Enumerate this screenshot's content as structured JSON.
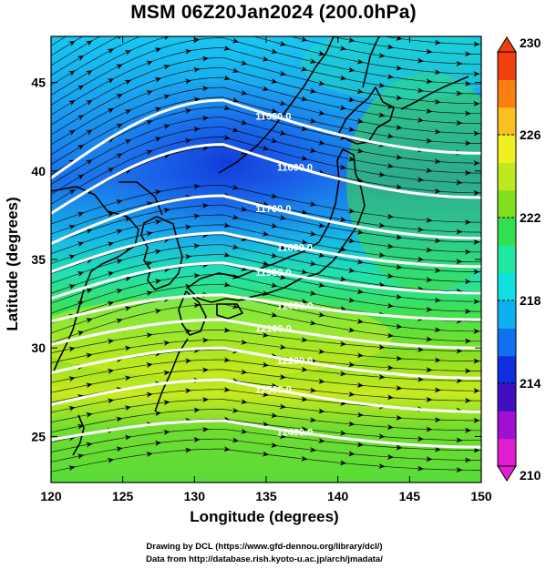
{
  "title": "MSM 06Z20Jan2024 (200.0hPa)",
  "xaxis": {
    "label": "Longitude (degrees)",
    "ticks": [
      120,
      125,
      130,
      135,
      140,
      145,
      150
    ],
    "range": [
      120,
      150
    ]
  },
  "yaxis": {
    "label": "Latitude  (degrees)",
    "ticks": [
      25,
      30,
      35,
      40,
      45
    ],
    "range": [
      22.4,
      47.6
    ]
  },
  "colorbar": {
    "ticks": [
      210,
      214,
      218,
      222,
      226,
      230
    ],
    "range": [
      210,
      230
    ],
    "colors": [
      "#e020d0",
      "#a010d0",
      "#4010c0",
      "#1030e0",
      "#1070f0",
      "#10b0f0",
      "#10e0e0",
      "#20e8a0",
      "#30e050",
      "#80e020",
      "#c0e820",
      "#f0f020",
      "#f8c020",
      "#f88010",
      "#f04010"
    ]
  },
  "contours": [
    {
      "label": "11500.0",
      "lat_west": 39.6,
      "lat_peak": 44.0,
      "lat_east": 41.0
    },
    {
      "label": "11600.0",
      "lat_west": 37.6,
      "lat_peak": 41.5,
      "lat_east": 38.5
    },
    {
      "label": "11700.0",
      "lat_west": 35.9,
      "lat_peak": 38.6,
      "lat_east": 36.2
    },
    {
      "label": "11800.0",
      "lat_west": 34.3,
      "lat_peak": 36.5,
      "lat_east": 34.6
    },
    {
      "label": "11900.0",
      "lat_west": 32.8,
      "lat_peak": 34.8,
      "lat_east": 33.1
    },
    {
      "label": "12000.0",
      "lat_west": 31.5,
      "lat_peak": 33.0,
      "lat_east": 31.6
    },
    {
      "label": "12100.0",
      "lat_west": 30.2,
      "lat_peak": 31.6,
      "lat_east": 30.0
    },
    {
      "label": "12200.0",
      "lat_west": 28.6,
      "lat_peak": 30.0,
      "lat_east": 28.3
    },
    {
      "label": "12300.0",
      "lat_west": 26.8,
      "lat_peak": 28.2,
      "lat_east": 26.4
    },
    {
      "label": "12400.0",
      "lat_west": 24.8,
      "lat_peak": 25.9,
      "lat_east": 24.4
    }
  ],
  "contour_color": "#ffffff",
  "credits": {
    "line1": "Drawing by DCL (https://www.gfd-dennou.org/library/dcl/)",
    "line2": "Data from http://database.rish.kyoto-u.ac.jp/arch/jmadata/"
  }
}
